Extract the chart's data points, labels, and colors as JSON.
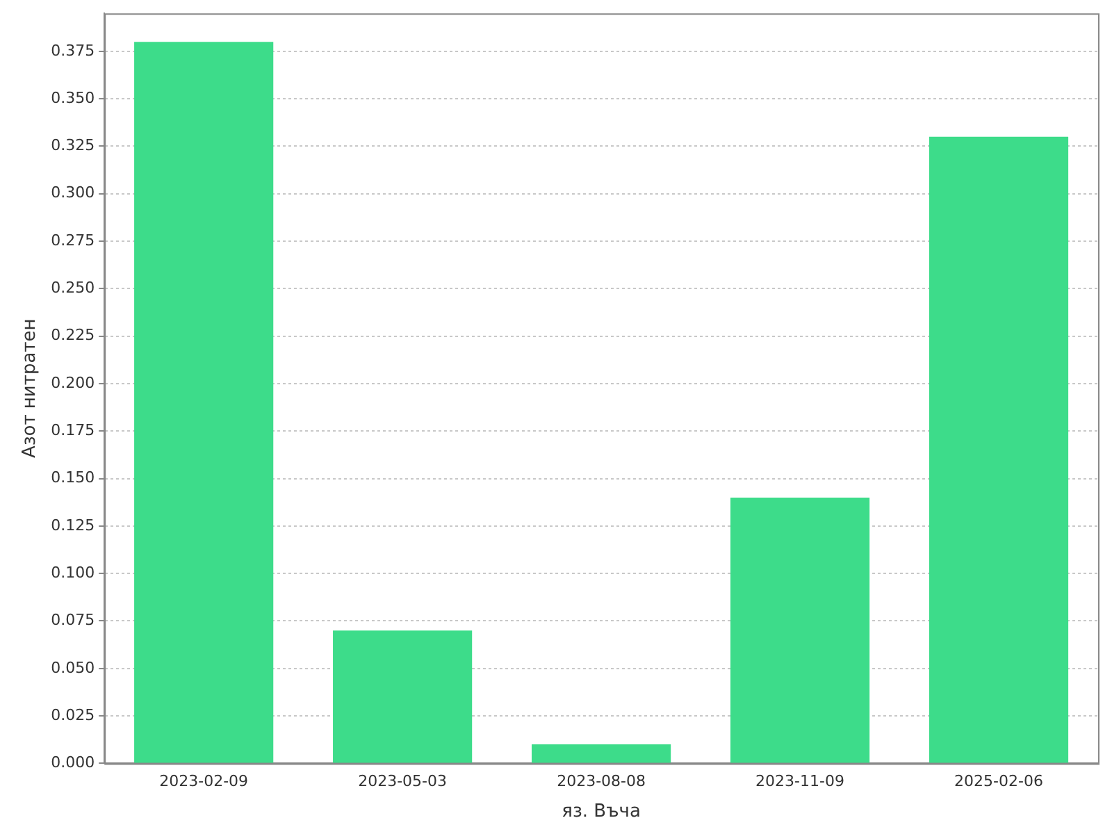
{
  "chart_data": {
    "type": "bar",
    "xlabel": "яз. Въча",
    "ylabel": "Азот нитратен",
    "categories": [
      "2023-02-09",
      "2023-05-03",
      "2023-08-08",
      "2023-11-09",
      "2025-02-06"
    ],
    "values": [
      0.38,
      0.07,
      0.01,
      0.14,
      0.33
    ],
    "color": "#3ddc8a",
    "ylim": [
      0,
      0.395
    ],
    "yticks": [
      {
        "value": 0,
        "label": "0.000"
      },
      {
        "value": 0.025,
        "label": "0.025"
      },
      {
        "value": 0.05,
        "label": "0.050"
      },
      {
        "value": 0.075,
        "label": "0.075"
      },
      {
        "value": 0.1,
        "label": "0.100"
      },
      {
        "value": 0.125,
        "label": "0.125"
      },
      {
        "value": 0.15,
        "label": "0.150"
      },
      {
        "value": 0.175,
        "label": "0.175"
      },
      {
        "value": 0.2,
        "label": "0.200"
      },
      {
        "value": 0.225,
        "label": "0.225"
      },
      {
        "value": 0.25,
        "label": "0.250"
      },
      {
        "value": 0.275,
        "label": "0.275"
      },
      {
        "value": 0.3,
        "label": "0.300"
      },
      {
        "value": 0.325,
        "label": "0.325"
      },
      {
        "value": 0.35,
        "label": "0.350"
      },
      {
        "value": 0.375,
        "label": "0.375"
      }
    ],
    "grid": "y",
    "legend": false
  }
}
